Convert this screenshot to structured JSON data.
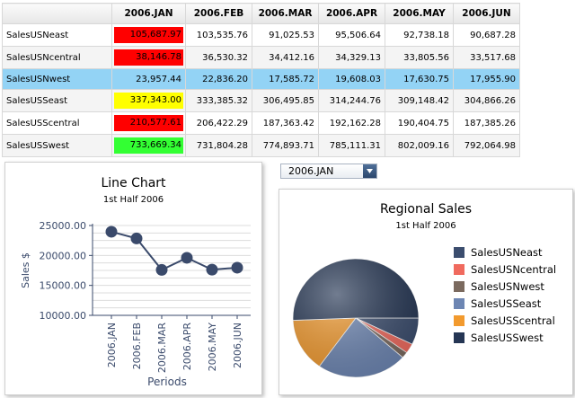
{
  "grid": {
    "columns": [
      "2006.JAN",
      "2006.FEB",
      "2006.MAR",
      "2006.APR",
      "2006.MAY",
      "2006.JUN"
    ],
    "rows": [
      {
        "name": "SalesUSNeast",
        "values": [
          "105,687.97",
          "103,535.76",
          "91,025.53",
          "95,506.64",
          "92,738.18",
          "90,687.28"
        ],
        "highlight": "#ff0000"
      },
      {
        "name": "SalesUSNcentral",
        "values": [
          "38,146.78",
          "36,530.32",
          "34,412.16",
          "34,329.13",
          "33,805.56",
          "33,517.68"
        ],
        "highlight": "#ff0000"
      },
      {
        "name": "SalesUSNwest",
        "values": [
          "23,957.44",
          "22,836.20",
          "17,585.72",
          "19,608.03",
          "17,630.75",
          "17,955.90"
        ],
        "highlight": ""
      },
      {
        "name": "SalesUSSeast",
        "values": [
          "337,343.00",
          "333,385.32",
          "306,495.85",
          "314,244.76",
          "309,148.42",
          "304,866.26"
        ],
        "highlight": "#ffff00"
      },
      {
        "name": "SalesUSScentral",
        "values": [
          "210,577.61",
          "206,422.29",
          "187,363.42",
          "192,162.28",
          "190,404.75",
          "187,385.26"
        ],
        "highlight": "#ff0000"
      },
      {
        "name": "SalesUSSwest",
        "values": [
          "733,669.34",
          "731,804.28",
          "774,893.71",
          "785,111.31",
          "802,009.16",
          "792,064.98"
        ],
        "highlight": "#33ff33"
      }
    ]
  },
  "line_chart": {
    "title": "Line Chart",
    "subtitle": "1st Half 2006",
    "ylabel": "Sales $",
    "xlabel": "Periods",
    "color": "#3a4a6b"
  },
  "period_select": {
    "value": "2006.JAN"
  },
  "pie_chart": {
    "title": "Regional Sales",
    "subtitle": "1st Half 2006"
  },
  "chart_data": [
    {
      "type": "line",
      "title": "Line Chart",
      "subtitle": "1st Half 2006",
      "xlabel": "Periods",
      "ylabel": "Sales $",
      "categories": [
        "2006.JAN",
        "2006.FEB",
        "2006.MAR",
        "2006.APR",
        "2006.MAY",
        "2006.JUN"
      ],
      "values": [
        23957.44,
        22836.2,
        17585.72,
        19608.03,
        17630.75,
        17955.9
      ],
      "yticks": [
        "10000.00",
        "15000.00",
        "20000.00",
        "25000.00"
      ],
      "ylim": [
        10000,
        25000
      ],
      "grid": true
    },
    {
      "type": "pie",
      "title": "Regional Sales",
      "subtitle": "1st Half 2006",
      "legend": "right",
      "slices": [
        {
          "label": "SalesUSNeast",
          "value": 105687.97,
          "color": "#3b4d6e"
        },
        {
          "label": "SalesUSNcentral",
          "value": 38146.78,
          "color": "#f06a5e"
        },
        {
          "label": "SalesUSNwest",
          "value": 23957.44,
          "color": "#7b6a5f"
        },
        {
          "label": "SalesUSSeast",
          "value": 337343.0,
          "color": "#6d86b3"
        },
        {
          "label": "SalesUSScentral",
          "value": 210577.61,
          "color": "#f29a2e"
        },
        {
          "label": "SalesUSSwest",
          "value": 733669.34,
          "color": "#253654"
        }
      ]
    }
  ]
}
